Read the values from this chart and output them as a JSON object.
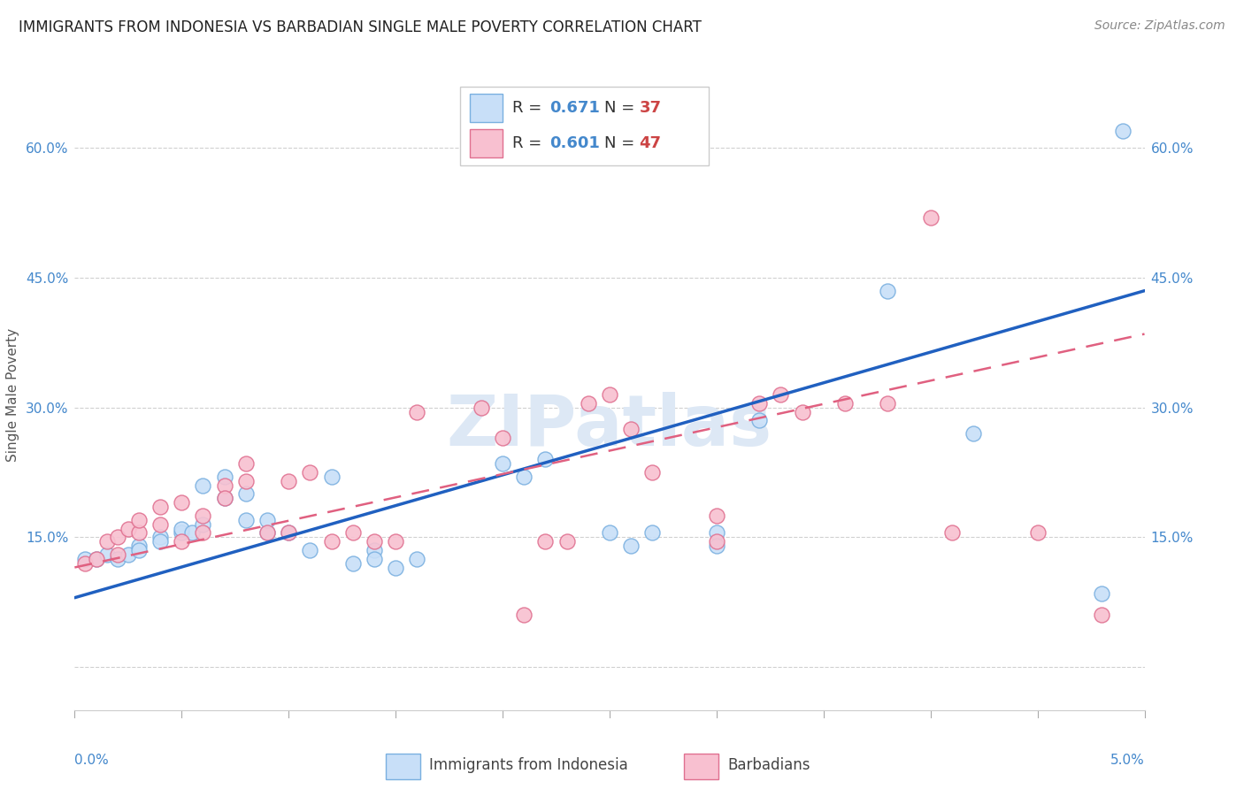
{
  "title": "IMMIGRANTS FROM INDONESIA VS BARBADIAN SINGLE MALE POVERTY CORRELATION CHART",
  "source": "Source: ZipAtlas.com",
  "ylabel": "Single Male Poverty",
  "xlim": [
    0.0,
    0.05
  ],
  "ylim": [
    -0.05,
    0.68
  ],
  "yticks": [
    0.0,
    0.15,
    0.3,
    0.45,
    0.6
  ],
  "watermark": "ZIPatlas",
  "blue_face": "#c8dff8",
  "blue_edge": "#7ab0e0",
  "pink_face": "#f8c0d0",
  "pink_edge": "#e07090",
  "blue_line_color": "#2060c0",
  "pink_line_color": "#e06080",
  "tick_color": "#4488cc",
  "grid_color": "#d0d0d0",
  "blue_scatter": [
    [
      0.0005,
      0.125
    ],
    [
      0.001,
      0.125
    ],
    [
      0.0015,
      0.13
    ],
    [
      0.002,
      0.125
    ],
    [
      0.0025,
      0.13
    ],
    [
      0.003,
      0.14
    ],
    [
      0.003,
      0.135
    ],
    [
      0.004,
      0.15
    ],
    [
      0.004,
      0.145
    ],
    [
      0.005,
      0.155
    ],
    [
      0.005,
      0.16
    ],
    [
      0.0055,
      0.155
    ],
    [
      0.006,
      0.165
    ],
    [
      0.006,
      0.21
    ],
    [
      0.007,
      0.22
    ],
    [
      0.007,
      0.195
    ],
    [
      0.008,
      0.2
    ],
    [
      0.008,
      0.17
    ],
    [
      0.009,
      0.155
    ],
    [
      0.009,
      0.17
    ],
    [
      0.01,
      0.155
    ],
    [
      0.011,
      0.135
    ],
    [
      0.012,
      0.22
    ],
    [
      0.013,
      0.12
    ],
    [
      0.014,
      0.135
    ],
    [
      0.014,
      0.125
    ],
    [
      0.015,
      0.115
    ],
    [
      0.016,
      0.125
    ],
    [
      0.02,
      0.235
    ],
    [
      0.021,
      0.22
    ],
    [
      0.022,
      0.24
    ],
    [
      0.025,
      0.155
    ],
    [
      0.026,
      0.14
    ],
    [
      0.027,
      0.155
    ],
    [
      0.03,
      0.155
    ],
    [
      0.03,
      0.14
    ],
    [
      0.032,
      0.285
    ],
    [
      0.038,
      0.435
    ],
    [
      0.042,
      0.27
    ],
    [
      0.048,
      0.085
    ],
    [
      0.049,
      0.62
    ]
  ],
  "pink_scatter": [
    [
      0.0005,
      0.12
    ],
    [
      0.001,
      0.125
    ],
    [
      0.0015,
      0.145
    ],
    [
      0.002,
      0.15
    ],
    [
      0.002,
      0.13
    ],
    [
      0.0025,
      0.16
    ],
    [
      0.003,
      0.155
    ],
    [
      0.003,
      0.17
    ],
    [
      0.004,
      0.165
    ],
    [
      0.004,
      0.185
    ],
    [
      0.005,
      0.19
    ],
    [
      0.005,
      0.145
    ],
    [
      0.006,
      0.155
    ],
    [
      0.006,
      0.175
    ],
    [
      0.007,
      0.21
    ],
    [
      0.007,
      0.195
    ],
    [
      0.008,
      0.215
    ],
    [
      0.008,
      0.235
    ],
    [
      0.009,
      0.155
    ],
    [
      0.01,
      0.155
    ],
    [
      0.01,
      0.215
    ],
    [
      0.011,
      0.225
    ],
    [
      0.012,
      0.145
    ],
    [
      0.013,
      0.155
    ],
    [
      0.014,
      0.145
    ],
    [
      0.015,
      0.145
    ],
    [
      0.016,
      0.295
    ],
    [
      0.019,
      0.3
    ],
    [
      0.02,
      0.265
    ],
    [
      0.021,
      0.06
    ],
    [
      0.022,
      0.145
    ],
    [
      0.023,
      0.145
    ],
    [
      0.024,
      0.305
    ],
    [
      0.025,
      0.315
    ],
    [
      0.026,
      0.275
    ],
    [
      0.027,
      0.225
    ],
    [
      0.03,
      0.175
    ],
    [
      0.03,
      0.145
    ],
    [
      0.032,
      0.305
    ],
    [
      0.033,
      0.315
    ],
    [
      0.034,
      0.295
    ],
    [
      0.036,
      0.305
    ],
    [
      0.038,
      0.305
    ],
    [
      0.04,
      0.52
    ],
    [
      0.041,
      0.155
    ],
    [
      0.045,
      0.155
    ],
    [
      0.048,
      0.06
    ]
  ],
  "blue_line_x": [
    0.0,
    0.05
  ],
  "blue_line_y": [
    0.08,
    0.435
  ],
  "pink_line_x": [
    0.0,
    0.05
  ],
  "pink_line_y": [
    0.115,
    0.385
  ],
  "background_color": "#ffffff"
}
